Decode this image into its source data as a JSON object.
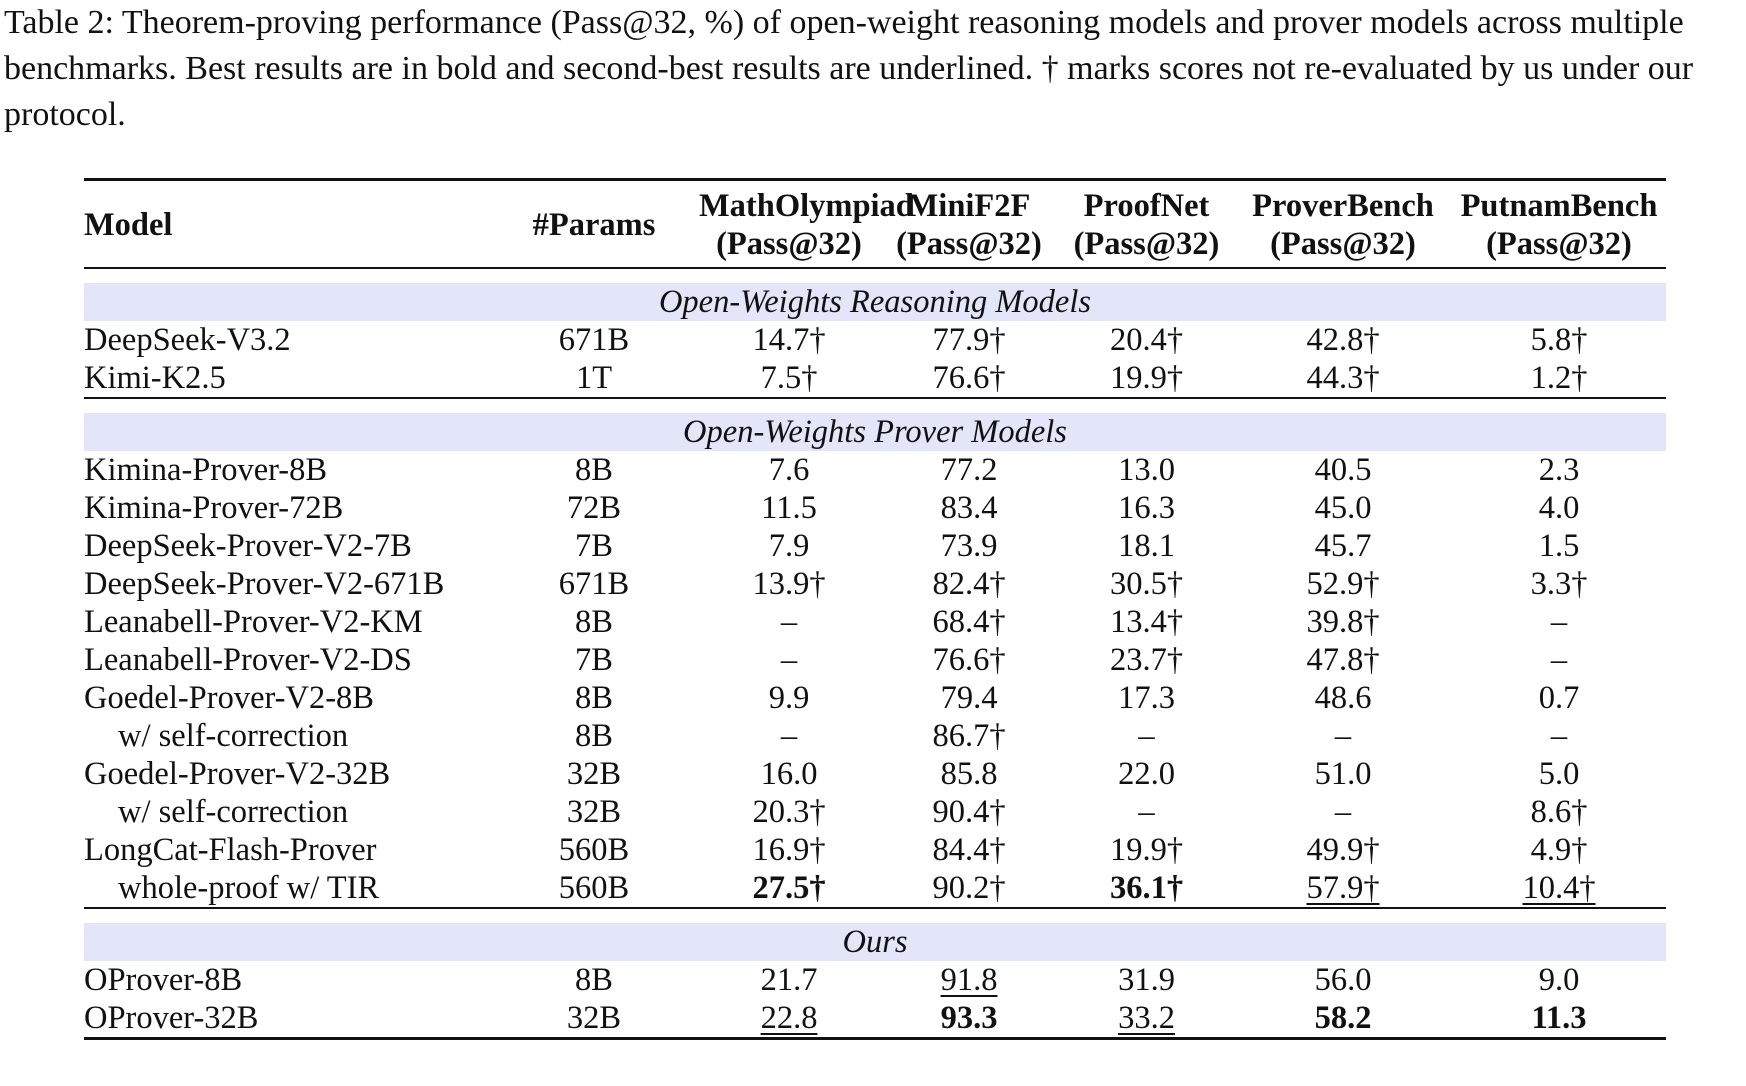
{
  "caption": "Table 2: Theorem-proving performance (Pass@32, %) of open-weight reasoning models and prover models across multiple benchmarks. Best results are in bold and second-best results are underlined. † marks scores not re-evaluated by us under our protocol.",
  "headers": {
    "model": "Model",
    "params": "#Params",
    "cols": [
      {
        "name": "MathOlympiad",
        "metric": "(Pass@32)"
      },
      {
        "name": "MiniF2F",
        "metric": "(Pass@32)"
      },
      {
        "name": "ProofNet",
        "metric": "(Pass@32)"
      },
      {
        "name": "ProverBench",
        "metric": "(Pass@32)"
      },
      {
        "name": "PutnamBench",
        "metric": "(Pass@32)"
      }
    ]
  },
  "sections": [
    {
      "title": "Open-Weights Reasoning Models",
      "rows": [
        {
          "model": "DeepSeek-V3.2",
          "sub": false,
          "params": "671B",
          "scores": [
            "14.7†",
            "77.9†",
            "20.4†",
            "42.8†",
            "5.8†"
          ],
          "style": [
            "",
            "",
            "",
            "",
            ""
          ]
        },
        {
          "model": "Kimi-K2.5",
          "sub": false,
          "params": "1T",
          "scores": [
            "7.5†",
            "76.6†",
            "19.9†",
            "44.3†",
            "1.2†"
          ],
          "style": [
            "",
            "",
            "",
            "",
            ""
          ]
        }
      ]
    },
    {
      "title": "Open-Weights Prover Models",
      "rows": [
        {
          "model": "Kimina-Prover-8B",
          "sub": false,
          "params": "8B",
          "scores": [
            "7.6",
            "77.2",
            "13.0",
            "40.5",
            "2.3"
          ],
          "style": [
            "",
            "",
            "",
            "",
            ""
          ]
        },
        {
          "model": "Kimina-Prover-72B",
          "sub": false,
          "params": "72B",
          "scores": [
            "11.5",
            "83.4",
            "16.3",
            "45.0",
            "4.0"
          ],
          "style": [
            "",
            "",
            "",
            "",
            ""
          ]
        },
        {
          "model": "DeepSeek-Prover-V2-7B",
          "sub": false,
          "params": "7B",
          "scores": [
            "7.9",
            "73.9",
            "18.1",
            "45.7",
            "1.5"
          ],
          "style": [
            "",
            "",
            "",
            "",
            ""
          ]
        },
        {
          "model": "DeepSeek-Prover-V2-671B",
          "sub": false,
          "params": "671B",
          "scores": [
            "13.9†",
            "82.4†",
            "30.5†",
            "52.9†",
            "3.3†"
          ],
          "style": [
            "",
            "",
            "",
            "",
            ""
          ]
        },
        {
          "model": "Leanabell-Prover-V2-KM",
          "sub": false,
          "params": "8B",
          "scores": [
            "–",
            "68.4†",
            "13.4†",
            "39.8†",
            "–"
          ],
          "style": [
            "",
            "",
            "",
            "",
            ""
          ]
        },
        {
          "model": "Leanabell-Prover-V2-DS",
          "sub": false,
          "params": "7B",
          "scores": [
            "–",
            "76.6†",
            "23.7†",
            "47.8†",
            "–"
          ],
          "style": [
            "",
            "",
            "",
            "",
            ""
          ]
        },
        {
          "model": "Goedel-Prover-V2-8B",
          "sub": false,
          "params": "8B",
          "scores": [
            "9.9",
            "79.4",
            "17.3",
            "48.6",
            "0.7"
          ],
          "style": [
            "",
            "",
            "",
            "",
            ""
          ]
        },
        {
          "model": "w/ self-correction",
          "sub": true,
          "params": "8B",
          "scores": [
            "–",
            "86.7†",
            "–",
            "–",
            "–"
          ],
          "style": [
            "",
            "",
            "",
            "",
            ""
          ]
        },
        {
          "model": "Goedel-Prover-V2-32B",
          "sub": false,
          "params": "32B",
          "scores": [
            "16.0",
            "85.8",
            "22.0",
            "51.0",
            "5.0"
          ],
          "style": [
            "",
            "",
            "",
            "",
            ""
          ]
        },
        {
          "model": "w/ self-correction",
          "sub": true,
          "params": "32B",
          "scores": [
            "20.3†",
            "90.4†",
            "–",
            "–",
            "8.6†"
          ],
          "style": [
            "",
            "",
            "",
            "",
            ""
          ]
        },
        {
          "model": "LongCat-Flash-Prover",
          "sub": false,
          "params": "560B",
          "scores": [
            "16.9†",
            "84.4†",
            "19.9†",
            "49.9†",
            "4.9†"
          ],
          "style": [
            "",
            "",
            "",
            "",
            ""
          ]
        },
        {
          "model": "whole-proof w/ TIR",
          "sub": true,
          "params": "560B",
          "scores": [
            "27.5†",
            "90.2†",
            "36.1†",
            "57.9†",
            "10.4†"
          ],
          "style": [
            "best",
            "",
            "best",
            "second",
            "second"
          ]
        }
      ]
    },
    {
      "title": "Ours",
      "rows": [
        {
          "model": "OProver-8B",
          "sub": false,
          "params": "8B",
          "scores": [
            "21.7",
            "91.8",
            "31.9",
            "56.0",
            "9.0"
          ],
          "style": [
            "",
            "second",
            "",
            "",
            ""
          ]
        },
        {
          "model": "OProver-32B",
          "sub": false,
          "params": "32B",
          "scores": [
            "22.8",
            "93.3",
            "33.2",
            "58.2",
            "11.3"
          ],
          "style": [
            "second",
            "best",
            "second",
            "best",
            "best"
          ]
        }
      ]
    }
  ]
}
